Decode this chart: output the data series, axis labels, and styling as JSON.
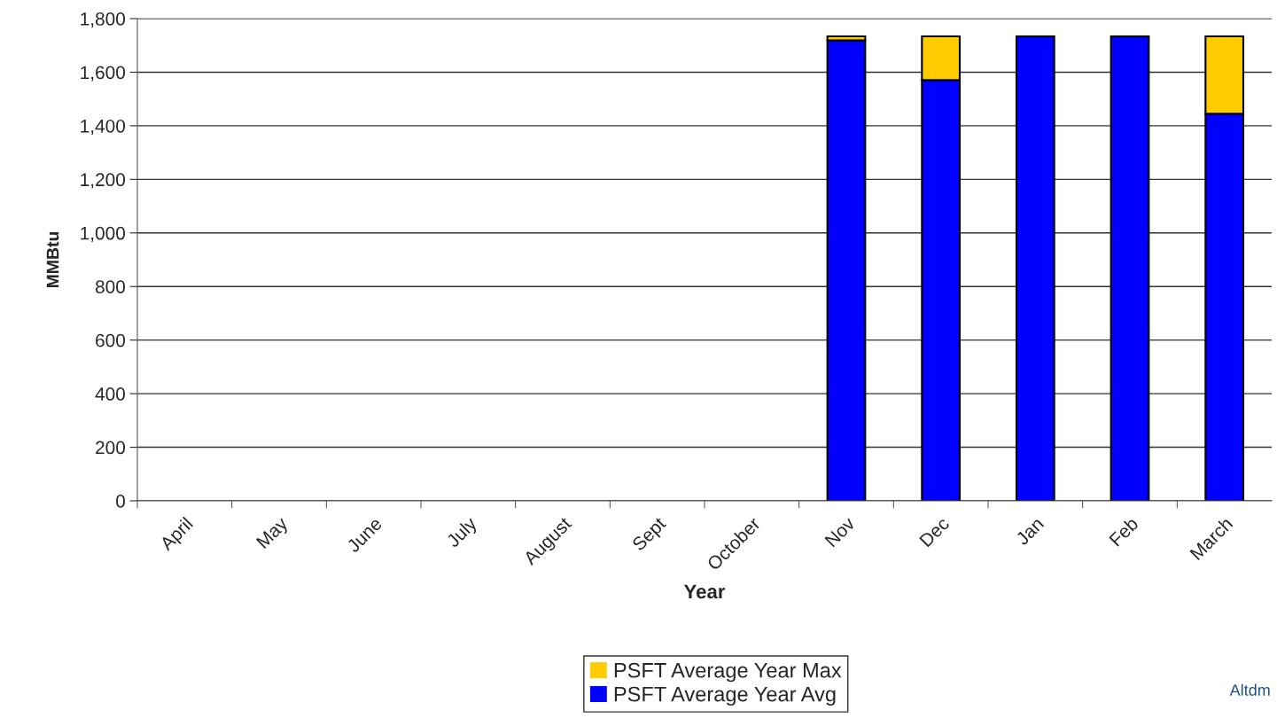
{
  "chart_data": {
    "type": "bar",
    "stacked": true,
    "xlabel": "Year",
    "ylabel": "MMBtu",
    "categories": [
      "April",
      "May",
      "June",
      "July",
      "August",
      "Sept",
      "October",
      "Nov",
      "Dec",
      "Jan",
      "Feb",
      "March"
    ],
    "series": [
      {
        "name": "PSFT Average Year Avg",
        "color": "#0000ff",
        "values": [
          0,
          0,
          0,
          0,
          0,
          0,
          0,
          1719,
          1571,
          1734,
          1734,
          1445
        ]
      },
      {
        "name": "PSFT Average Year Max",
        "color": "#ffcc00",
        "values": [
          0,
          0,
          0,
          0,
          0,
          0,
          0,
          15,
          163,
          0,
          0,
          289
        ]
      }
    ],
    "ylim": [
      0,
      1800
    ],
    "yticks": [
      {
        "value": 0,
        "label": "0"
      },
      {
        "value": 200,
        "label": "200"
      },
      {
        "value": 400,
        "label": "400"
      },
      {
        "value": 600,
        "label": "600"
      },
      {
        "value": 800,
        "label": "800"
      },
      {
        "value": 1000,
        "label": "1,000"
      },
      {
        "value": 1200,
        "label": "1,200"
      },
      {
        "value": 1400,
        "label": "1,400"
      },
      {
        "value": 1600,
        "label": "1,600"
      },
      {
        "value": 1800,
        "label": "1,800"
      }
    ],
    "grid": "y",
    "legend": "bottom",
    "annotations": [
      "Altdm"
    ]
  }
}
